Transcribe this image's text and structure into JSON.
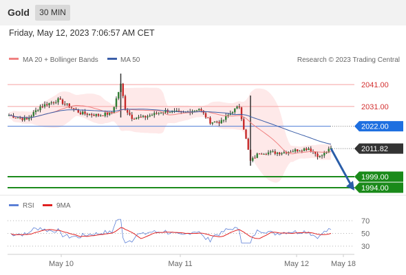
{
  "header": {
    "instrument": "Gold",
    "timeframe": "30 MIN"
  },
  "datetime": "Friday, May 12, 2023 7:06:57 AM CET",
  "legend": {
    "ma20": "MA 20 + Bollinger Bands",
    "ma50": "MA 50",
    "copyright": "Research © 2023 Trading Central",
    "rsi": "RSI",
    "rsi_ma": "9MA"
  },
  "colors": {
    "ma20": "#f08080",
    "ma50": "#3a5ea8",
    "bands_fill": "#fde2e2",
    "candle_up": "#2e7d32",
    "candle_down": "#c62828",
    "resistance": "#f4a0a0",
    "resistance_text": "#d32f2f",
    "pivot": "#4d7cd6",
    "pivot_badge": "#1e6fe0",
    "support": "#1a8a1a",
    "last_badge": "#333333",
    "arrow": "#2a5da8",
    "rsi": "#5b7fd6",
    "rsi_ma": "#e02020"
  },
  "chart_data": [
    {
      "type": "candlestick",
      "ylim": [
        1989,
        2050
      ],
      "xlabels": [
        "May 10",
        "May 11",
        "May 12",
        "May 18"
      ],
      "levels": [
        {
          "value": 2041.0,
          "label": "2041.00",
          "kind": "resistance"
        },
        {
          "value": 2031.0,
          "label": "2031.00",
          "kind": "resistance"
        },
        {
          "value": 2022.0,
          "label": "2022.00",
          "kind": "pivot"
        },
        {
          "value": 2011.82,
          "label": "2011.82",
          "kind": "last"
        },
        {
          "value": 1999.0,
          "label": "1999.00",
          "kind": "support"
        },
        {
          "value": 1994.0,
          "label": "1994.00",
          "kind": "support"
        }
      ],
      "forecast": {
        "from": 2011.8,
        "to": 1994
      }
    },
    {
      "type": "line",
      "series": [
        {
          "name": "RSI"
        },
        {
          "name": "9MA"
        }
      ],
      "yticks": [
        70,
        50,
        30
      ]
    }
  ]
}
